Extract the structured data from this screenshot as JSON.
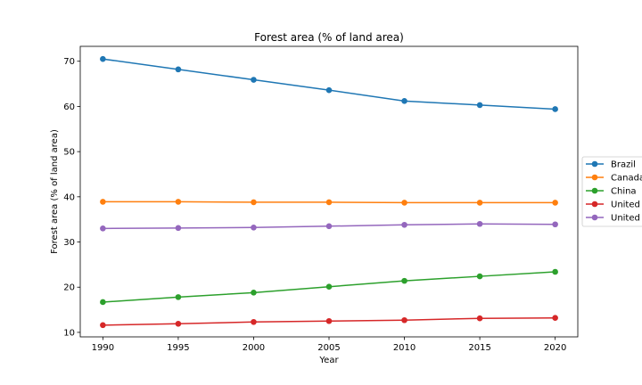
{
  "chart_data": {
    "type": "line",
    "title": "Forest area (% of land area)",
    "xlabel": "Year",
    "ylabel": "Forest area (% of land area)",
    "x": [
      1990,
      1995,
      2000,
      2005,
      2010,
      2015,
      2020
    ],
    "xlim": [
      1988.5,
      2021.5
    ],
    "ylim": [
      9.0,
      73.3
    ],
    "xticks": [
      1990,
      1995,
      2000,
      2005,
      2010,
      2015,
      2020
    ],
    "yticks": [
      10,
      20,
      30,
      40,
      50,
      60,
      70
    ],
    "grid": false,
    "legend_position": "right, outside plot",
    "series": [
      {
        "name": "Brazil",
        "color": "#1f77b4",
        "values": [
          70.5,
          68.2,
          65.9,
          63.6,
          61.2,
          60.3,
          59.4
        ]
      },
      {
        "name": "Canada",
        "color": "#ff7f0e",
        "values": [
          38.9,
          38.9,
          38.8,
          38.8,
          38.7,
          38.7,
          38.7
        ]
      },
      {
        "name": "China",
        "color": "#2ca02c",
        "values": [
          16.7,
          17.8,
          18.8,
          20.1,
          21.4,
          22.4,
          23.4
        ]
      },
      {
        "name": "United",
        "color": "#d62728",
        "values": [
          11.6,
          11.9,
          12.3,
          12.5,
          12.7,
          13.1,
          13.2
        ]
      },
      {
        "name": "United",
        "color": "#9467bd",
        "values": [
          33.0,
          33.1,
          33.2,
          33.5,
          33.8,
          34.0,
          33.9
        ]
      }
    ]
  }
}
